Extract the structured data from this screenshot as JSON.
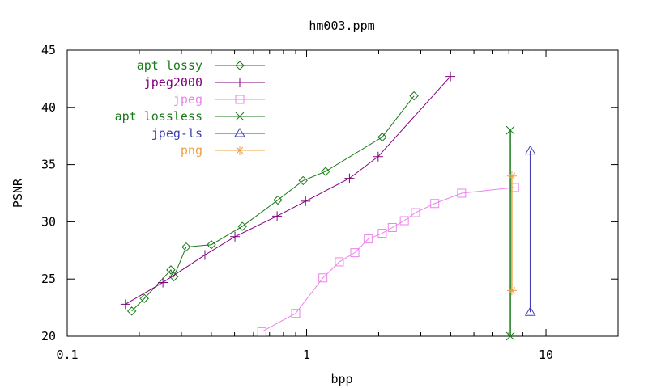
{
  "chart_data": {
    "type": "line",
    "title": "hm003.ppm",
    "xlabel": "bpp",
    "ylabel": "PSNR",
    "xscale": "log",
    "xlim": [
      0.1,
      20
    ],
    "ylim": [
      20,
      45
    ],
    "xticks": [
      {
        "value": 0.1,
        "label": "0.1"
      },
      {
        "value": 1,
        "label": "1"
      },
      {
        "value": 10,
        "label": "10"
      }
    ],
    "yticks": [
      {
        "value": 20,
        "label": "20"
      },
      {
        "value": 25,
        "label": "25"
      },
      {
        "value": 30,
        "label": "30"
      },
      {
        "value": 35,
        "label": "35"
      },
      {
        "value": 40,
        "label": "40"
      },
      {
        "value": 45,
        "label": "45"
      }
    ],
    "grid": false,
    "legend_position": "top-left",
    "series": [
      {
        "name": "apt lossy",
        "color": "#1a7a1a",
        "marker": "diamond",
        "x": [
          0.186,
          0.21,
          0.271,
          0.279,
          0.314,
          0.4,
          0.539,
          0.758,
          0.967,
          1.2,
          2.07,
          2.81
        ],
        "y": [
          22.2,
          23.3,
          25.8,
          25.2,
          27.8,
          28.0,
          29.6,
          31.9,
          33.6,
          34.4,
          37.4,
          41.0
        ]
      },
      {
        "name": "jpeg2000",
        "color": "#800080",
        "marker": "plus",
        "x": [
          0.175,
          0.251,
          0.376,
          0.502,
          0.753,
          0.99,
          1.51,
          1.99,
          3.99
        ],
        "y": [
          22.8,
          24.7,
          27.1,
          28.7,
          30.5,
          31.8,
          33.8,
          35.7,
          42.7
        ]
      },
      {
        "name": "jpeg",
        "color": "#ee82ee",
        "marker": "square",
        "x": [
          0.65,
          0.9,
          1.17,
          1.37,
          1.59,
          1.81,
          2.07,
          2.28,
          2.56,
          2.85,
          3.43,
          4.44,
          7.39
        ],
        "y": [
          20.4,
          22.0,
          25.1,
          26.5,
          27.3,
          28.5,
          29.0,
          29.5,
          30.1,
          30.8,
          31.6,
          32.5,
          33.0
        ]
      },
      {
        "name": "apt lossless",
        "color": "#1a7a1a",
        "marker": "x",
        "x": [
          7.1,
          7.1
        ],
        "y": [
          20.0,
          38.0
        ]
      },
      {
        "name": "jpeg-ls",
        "color": "#4040b0",
        "marker": "triangle",
        "x": [
          8.6,
          8.6
        ],
        "y": [
          22.1,
          36.2
        ]
      },
      {
        "name": "png",
        "color": "#f0a040",
        "marker": "star",
        "x": [
          7.2,
          7.2
        ],
        "y": [
          24.0,
          34.0
        ]
      }
    ]
  }
}
